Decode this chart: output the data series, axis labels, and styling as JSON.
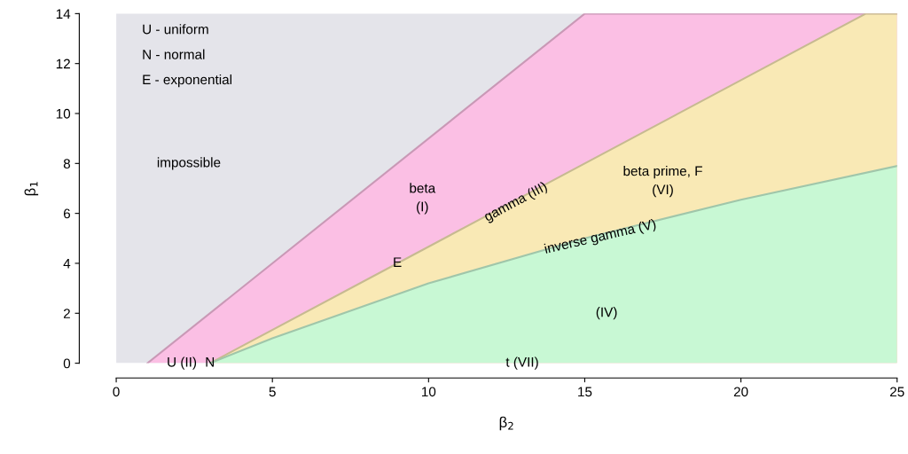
{
  "chart_data": {
    "type": "area",
    "xlabel": "β$_{2}$",
    "ylabel": "β$_{1}$",
    "series": [
      {
        "color": "#fbbfe4",
        "x": [
          1,
          15,
          25
        ],
        "values": [
          0,
          14,
          14
        ]
      },
      {
        "color": "#f9e9b5",
        "x": [
          3,
          9,
          24,
          25
        ],
        "values": [
          0,
          4,
          14,
          14
        ]
      },
      {
        "color": "#c8f8d4",
        "x": [
          3,
          5,
          10,
          15,
          20,
          25
        ],
        "values": [
          0,
          1.0,
          3.2,
          5.0,
          6.55,
          7.9
        ]
      }
    ],
    "bands": [
      {
        "axis": "x",
        "from": 0,
        "to": 25,
        "color": "#e4e4ea"
      }
    ],
    "xlim": [
      0,
      25
    ],
    "ylim": [
      0,
      14
    ],
    "xticks": [
      0,
      5,
      10,
      15,
      20,
      25
    ],
    "yticks": [
      0,
      2,
      4,
      6,
      8,
      10,
      12,
      14
    ],
    "grid": false,
    "legend": false,
    "annotations": [
      "U - uniform",
      "N - normal",
      "E - exponential",
      "impossible",
      "beta\n(I)",
      "gamma (III)",
      "beta prime, F\n(VI)",
      "inverse gamma (V)",
      "(IV)",
      {
        "text": "E",
        "x": 9,
        "y": 4
      },
      {
        "text": "U (II)",
        "x": 2.1,
        "y": 0
      },
      {
        "text": "N",
        "x": 3,
        "y": 0
      },
      {
        "text": "t (VII)",
        "x": 13,
        "y": 0
      }
    ]
  }
}
